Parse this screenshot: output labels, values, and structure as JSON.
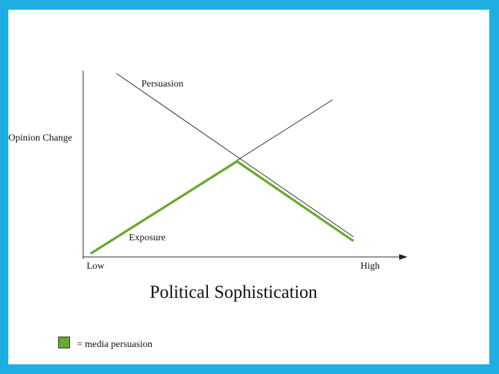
{
  "diagram": {
    "labels": {
      "persuasion": "Persuasion",
      "exposure": "Exposure",
      "ylabel": "Opinion Change",
      "x_low": "Low",
      "x_high": "High",
      "xlabel": "Political Sophistication"
    },
    "legend": {
      "text": "= media persuasion",
      "color": "#6aa92f"
    },
    "colors": {
      "background": "#1eaee4",
      "lines": "#222222",
      "highlight": "#6aa92f"
    }
  }
}
